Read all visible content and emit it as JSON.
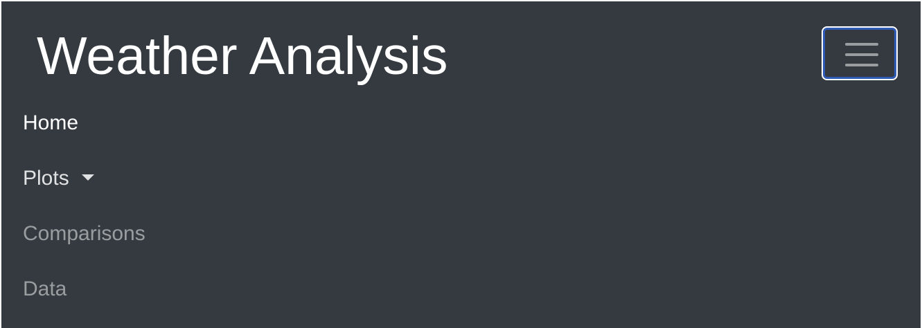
{
  "navbar": {
    "brand": "Weather Analysis",
    "toggler_icon": "hamburger-menu-icon",
    "items": [
      {
        "label": "Home",
        "state": "active"
      },
      {
        "label": "Plots",
        "state": "dropdown",
        "icon": "caret-down-icon"
      },
      {
        "label": "Comparisons",
        "state": "muted"
      },
      {
        "label": "Data",
        "state": "muted"
      }
    ]
  },
  "colors": {
    "navbar_bg": "#343a40",
    "active_text": "#ffffff",
    "muted_text": "rgba(255,255,255,0.5)",
    "focus_ring": "#2f5bb7"
  }
}
